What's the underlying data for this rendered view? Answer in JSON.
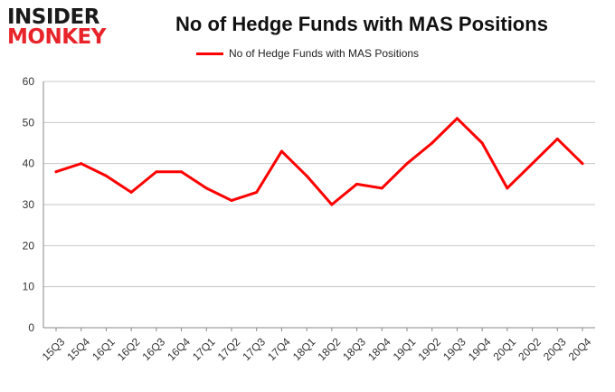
{
  "logo": {
    "top": "INSIDER",
    "bottom": "MONKEY"
  },
  "chart_data": {
    "type": "line",
    "title": "No of Hedge Funds with MAS Positions",
    "xlabel": "",
    "ylabel": "",
    "categories": [
      "15Q3",
      "15Q4",
      "16Q1",
      "16Q2",
      "16Q3",
      "16Q4",
      "17Q1",
      "17Q2",
      "17Q3",
      "17Q4",
      "18Q1",
      "18Q2",
      "18Q3",
      "18Q4",
      "19Q1",
      "19Q2",
      "19Q3",
      "19Q4",
      "20Q1",
      "20Q2",
      "20Q3",
      "20Q4"
    ],
    "series": [
      {
        "name": "No of Hedge Funds with MAS Positions",
        "color": "#ff0000",
        "values": [
          38,
          40,
          37,
          33,
          38,
          38,
          34,
          31,
          33,
          43,
          37,
          30,
          35,
          34,
          40,
          45,
          51,
          45,
          34,
          40,
          46,
          40
        ]
      }
    ],
    "ylim": [
      0,
      60
    ],
    "yticks": [
      0,
      10,
      20,
      30,
      40,
      50,
      60
    ],
    "grid": true,
    "legend_position": "top-center"
  }
}
